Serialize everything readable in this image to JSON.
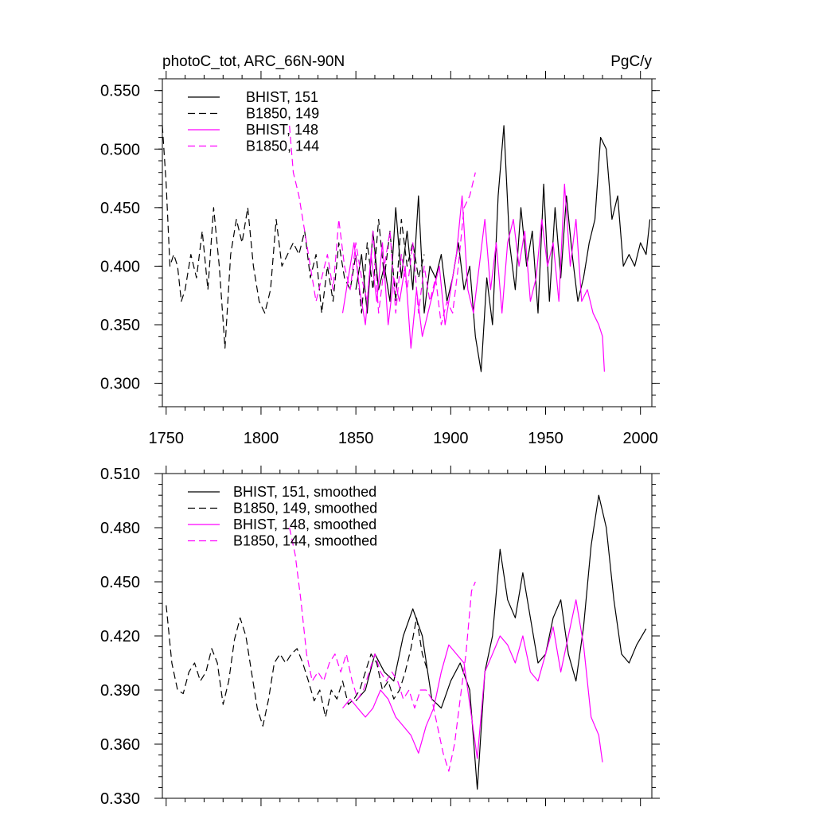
{
  "chart_data": [
    {
      "type": "line",
      "title": "photoC_tot, ARC_66N-90N",
      "units": "PgC/y",
      "xlim": [
        1748,
        2006
      ],
      "ylim": [
        0.28,
        0.56
      ],
      "xticks": [
        1750,
        1800,
        1850,
        1900,
        1950,
        2000
      ],
      "xtick_labels": [
        "1750",
        "1800",
        "1850",
        "1900",
        "1950",
        "2000"
      ],
      "yticks": [
        0.3,
        0.35,
        0.4,
        0.45,
        0.5,
        0.55
      ],
      "ytick_labels": [
        "0.300",
        "0.350",
        "0.400",
        "0.450",
        "0.500",
        "0.550"
      ],
      "legend_position": "top-left",
      "series": [
        {
          "name": "BHIST, 151",
          "color": "#000000",
          "dash": "solid",
          "x": [
            1850,
            1853,
            1856,
            1859,
            1862,
            1865,
            1868,
            1871,
            1874,
            1877,
            1880,
            1883,
            1886,
            1889,
            1892,
            1895,
            1898,
            1901,
            1904,
            1907,
            1910,
            1913,
            1916,
            1919,
            1922,
            1925,
            1928,
            1931,
            1934,
            1937,
            1940,
            1943,
            1946,
            1949,
            1952,
            1955,
            1958,
            1961,
            1964,
            1967,
            1970,
            1973,
            1976,
            1979,
            1982,
            1985,
            1988,
            1991,
            1994,
            1997,
            2000,
            2003,
            2005
          ],
          "y": [
            0.38,
            0.41,
            0.36,
            0.43,
            0.38,
            0.4,
            0.37,
            0.45,
            0.39,
            0.43,
            0.38,
            0.46,
            0.36,
            0.4,
            0.39,
            0.41,
            0.37,
            0.39,
            0.42,
            0.38,
            0.4,
            0.34,
            0.31,
            0.39,
            0.35,
            0.46,
            0.52,
            0.42,
            0.38,
            0.45,
            0.4,
            0.43,
            0.36,
            0.47,
            0.37,
            0.45,
            0.39,
            0.46,
            0.41,
            0.37,
            0.39,
            0.42,
            0.44,
            0.51,
            0.5,
            0.44,
            0.46,
            0.4,
            0.41,
            0.4,
            0.42,
            0.41,
            0.44
          ]
        },
        {
          "name": "B1850, 149",
          "color": "#000000",
          "dash": "dashed",
          "x": [
            1748,
            1750,
            1752,
            1754,
            1756,
            1758,
            1760,
            1763,
            1766,
            1769,
            1772,
            1775,
            1778,
            1781,
            1784,
            1787,
            1790,
            1793,
            1796,
            1799,
            1802,
            1805,
            1808,
            1811,
            1814,
            1817,
            1820,
            1823,
            1826,
            1829,
            1832,
            1835,
            1838,
            1841,
            1844,
            1847,
            1850,
            1853,
            1856,
            1859,
            1862,
            1865,
            1868,
            1871,
            1874,
            1877,
            1880,
            1883,
            1886
          ],
          "y": [
            0.52,
            0.47,
            0.4,
            0.41,
            0.4,
            0.37,
            0.38,
            0.41,
            0.39,
            0.43,
            0.38,
            0.45,
            0.4,
            0.33,
            0.41,
            0.44,
            0.42,
            0.45,
            0.4,
            0.37,
            0.36,
            0.38,
            0.44,
            0.4,
            0.41,
            0.42,
            0.41,
            0.43,
            0.39,
            0.41,
            0.36,
            0.4,
            0.37,
            0.42,
            0.39,
            0.38,
            0.41,
            0.36,
            0.42,
            0.38,
            0.44,
            0.39,
            0.43,
            0.37,
            0.44,
            0.4,
            0.42,
            0.39,
            0.41
          ]
        },
        {
          "name": "BHIST, 148",
          "color": "#ff00ff",
          "dash": "solid",
          "x": [
            1843,
            1846,
            1849,
            1852,
            1855,
            1858,
            1861,
            1864,
            1867,
            1870,
            1873,
            1876,
            1879,
            1882,
            1885,
            1888,
            1891,
            1894,
            1897,
            1900,
            1903,
            1906,
            1909,
            1912,
            1915,
            1918,
            1921,
            1924,
            1927,
            1930,
            1933,
            1936,
            1939,
            1942,
            1945,
            1948,
            1951,
            1954,
            1957,
            1960,
            1963,
            1966,
            1969,
            1972,
            1975,
            1978,
            1980,
            1981
          ],
          "y": [
            0.36,
            0.39,
            0.42,
            0.38,
            0.35,
            0.41,
            0.37,
            0.42,
            0.35,
            0.39,
            0.37,
            0.4,
            0.33,
            0.38,
            0.34,
            0.36,
            0.38,
            0.4,
            0.35,
            0.38,
            0.41,
            0.46,
            0.38,
            0.36,
            0.4,
            0.44,
            0.38,
            0.42,
            0.36,
            0.42,
            0.44,
            0.4,
            0.43,
            0.37,
            0.39,
            0.44,
            0.4,
            0.42,
            0.37,
            0.47,
            0.4,
            0.44,
            0.37,
            0.38,
            0.36,
            0.35,
            0.34,
            0.31
          ]
        },
        {
          "name": "B1850, 144",
          "color": "#ff00ff",
          "dash": "dashed",
          "x": [
            1815,
            1817,
            1820,
            1823,
            1826,
            1829,
            1832,
            1835,
            1838,
            1841,
            1844,
            1847,
            1850,
            1853,
            1856,
            1859,
            1862,
            1865,
            1868,
            1871,
            1874,
            1877,
            1880,
            1883,
            1886,
            1889,
            1892,
            1895,
            1898,
            1901,
            1904,
            1907,
            1910,
            1913
          ],
          "y": [
            0.52,
            0.48,
            0.46,
            0.43,
            0.4,
            0.37,
            0.39,
            0.41,
            0.38,
            0.44,
            0.4,
            0.38,
            0.42,
            0.39,
            0.37,
            0.43,
            0.36,
            0.4,
            0.43,
            0.36,
            0.41,
            0.38,
            0.42,
            0.36,
            0.4,
            0.37,
            0.39,
            0.35,
            0.37,
            0.36,
            0.4,
            0.45,
            0.46,
            0.48
          ]
        }
      ]
    },
    {
      "type": "line",
      "title": "",
      "xlim": [
        1748,
        2006
      ],
      "ylim": [
        0.33,
        0.51
      ],
      "xticks": [
        1750,
        1800,
        1850,
        1900,
        1950,
        2000
      ],
      "yticks": [
        0.33,
        0.36,
        0.39,
        0.42,
        0.45,
        0.48,
        0.51
      ],
      "ytick_labels": [
        "0.330",
        "0.360",
        "0.390",
        "0.420",
        "0.450",
        "0.480",
        "0.510"
      ],
      "legend_position": "top-left",
      "series": [
        {
          "name": "BHIST, 151, smoothed",
          "color": "#000000",
          "dash": "solid",
          "x": [
            1850,
            1855,
            1860,
            1865,
            1870,
            1875,
            1880,
            1885,
            1890,
            1895,
            1900,
            1905,
            1910,
            1914,
            1918,
            1922,
            1926,
            1930,
            1934,
            1938,
            1942,
            1946,
            1950,
            1954,
            1958,
            1962,
            1966,
            1970,
            1974,
            1978,
            1982,
            1986,
            1990,
            1994,
            1998,
            2003
          ],
          "y": [
            0.384,
            0.39,
            0.41,
            0.4,
            0.395,
            0.42,
            0.435,
            0.42,
            0.385,
            0.38,
            0.395,
            0.405,
            0.39,
            0.335,
            0.4,
            0.42,
            0.468,
            0.44,
            0.43,
            0.455,
            0.43,
            0.405,
            0.41,
            0.43,
            0.44,
            0.41,
            0.395,
            0.425,
            0.47,
            0.498,
            0.48,
            0.44,
            0.41,
            0.405,
            0.415,
            0.424
          ]
        },
        {
          "name": "B1850, 149, smoothed",
          "color": "#000000",
          "dash": "dashed",
          "x": [
            1750,
            1753,
            1756,
            1759,
            1762,
            1765,
            1768,
            1771,
            1774,
            1777,
            1780,
            1783,
            1786,
            1789,
            1792,
            1795,
            1798,
            1801,
            1804,
            1807,
            1810,
            1813,
            1816,
            1819,
            1822,
            1825,
            1828,
            1831,
            1834,
            1837,
            1840,
            1843,
            1846,
            1849,
            1852,
            1855,
            1858,
            1861,
            1864,
            1867,
            1870,
            1873,
            1876,
            1879,
            1882,
            1885,
            1888
          ],
          "y": [
            0.437,
            0.405,
            0.39,
            0.388,
            0.4,
            0.405,
            0.395,
            0.4,
            0.413,
            0.405,
            0.382,
            0.395,
            0.418,
            0.43,
            0.42,
            0.4,
            0.38,
            0.37,
            0.385,
            0.405,
            0.41,
            0.405,
            0.41,
            0.413,
            0.405,
            0.395,
            0.384,
            0.39,
            0.375,
            0.39,
            0.385,
            0.395,
            0.382,
            0.385,
            0.39,
            0.4,
            0.41,
            0.405,
            0.39,
            0.395,
            0.385,
            0.39,
            0.4,
            0.413,
            0.43,
            0.41,
            0.4
          ]
        },
        {
          "name": "BHIST, 148, smoothed",
          "color": "#ff00ff",
          "dash": "solid",
          "x": [
            1843,
            1847,
            1851,
            1855,
            1859,
            1863,
            1867,
            1871,
            1875,
            1879,
            1883,
            1887,
            1891,
            1895,
            1899,
            1903,
            1907,
            1911,
            1914,
            1918,
            1922,
            1926,
            1930,
            1934,
            1938,
            1942,
            1946,
            1950,
            1954,
            1958,
            1962,
            1966,
            1970,
            1974,
            1978,
            1980
          ],
          "y": [
            0.38,
            0.385,
            0.38,
            0.375,
            0.38,
            0.39,
            0.385,
            0.375,
            0.37,
            0.365,
            0.355,
            0.37,
            0.38,
            0.4,
            0.415,
            0.41,
            0.405,
            0.375,
            0.352,
            0.4,
            0.41,
            0.42,
            0.415,
            0.405,
            0.42,
            0.4,
            0.395,
            0.41,
            0.425,
            0.4,
            0.42,
            0.44,
            0.415,
            0.375,
            0.365,
            0.35
          ]
        },
        {
          "name": "B1850, 144, smoothed",
          "color": "#ff00ff",
          "dash": "dashed",
          "x": [
            1815,
            1818,
            1821,
            1824,
            1827,
            1830,
            1833,
            1836,
            1839,
            1842,
            1845,
            1848,
            1851,
            1854,
            1857,
            1860,
            1863,
            1866,
            1869,
            1872,
            1875,
            1878,
            1881,
            1884,
            1887,
            1890,
            1893,
            1896,
            1899,
            1902,
            1905,
            1908,
            1911,
            1913
          ],
          "y": [
            0.48,
            0.465,
            0.44,
            0.41,
            0.395,
            0.4,
            0.395,
            0.405,
            0.41,
            0.4,
            0.41,
            0.395,
            0.385,
            0.39,
            0.4,
            0.41,
            0.4,
            0.395,
            0.4,
            0.395,
            0.385,
            0.39,
            0.38,
            0.39,
            0.39,
            0.385,
            0.37,
            0.355,
            0.345,
            0.36,
            0.385,
            0.41,
            0.445,
            0.45
          ]
        }
      ]
    }
  ]
}
